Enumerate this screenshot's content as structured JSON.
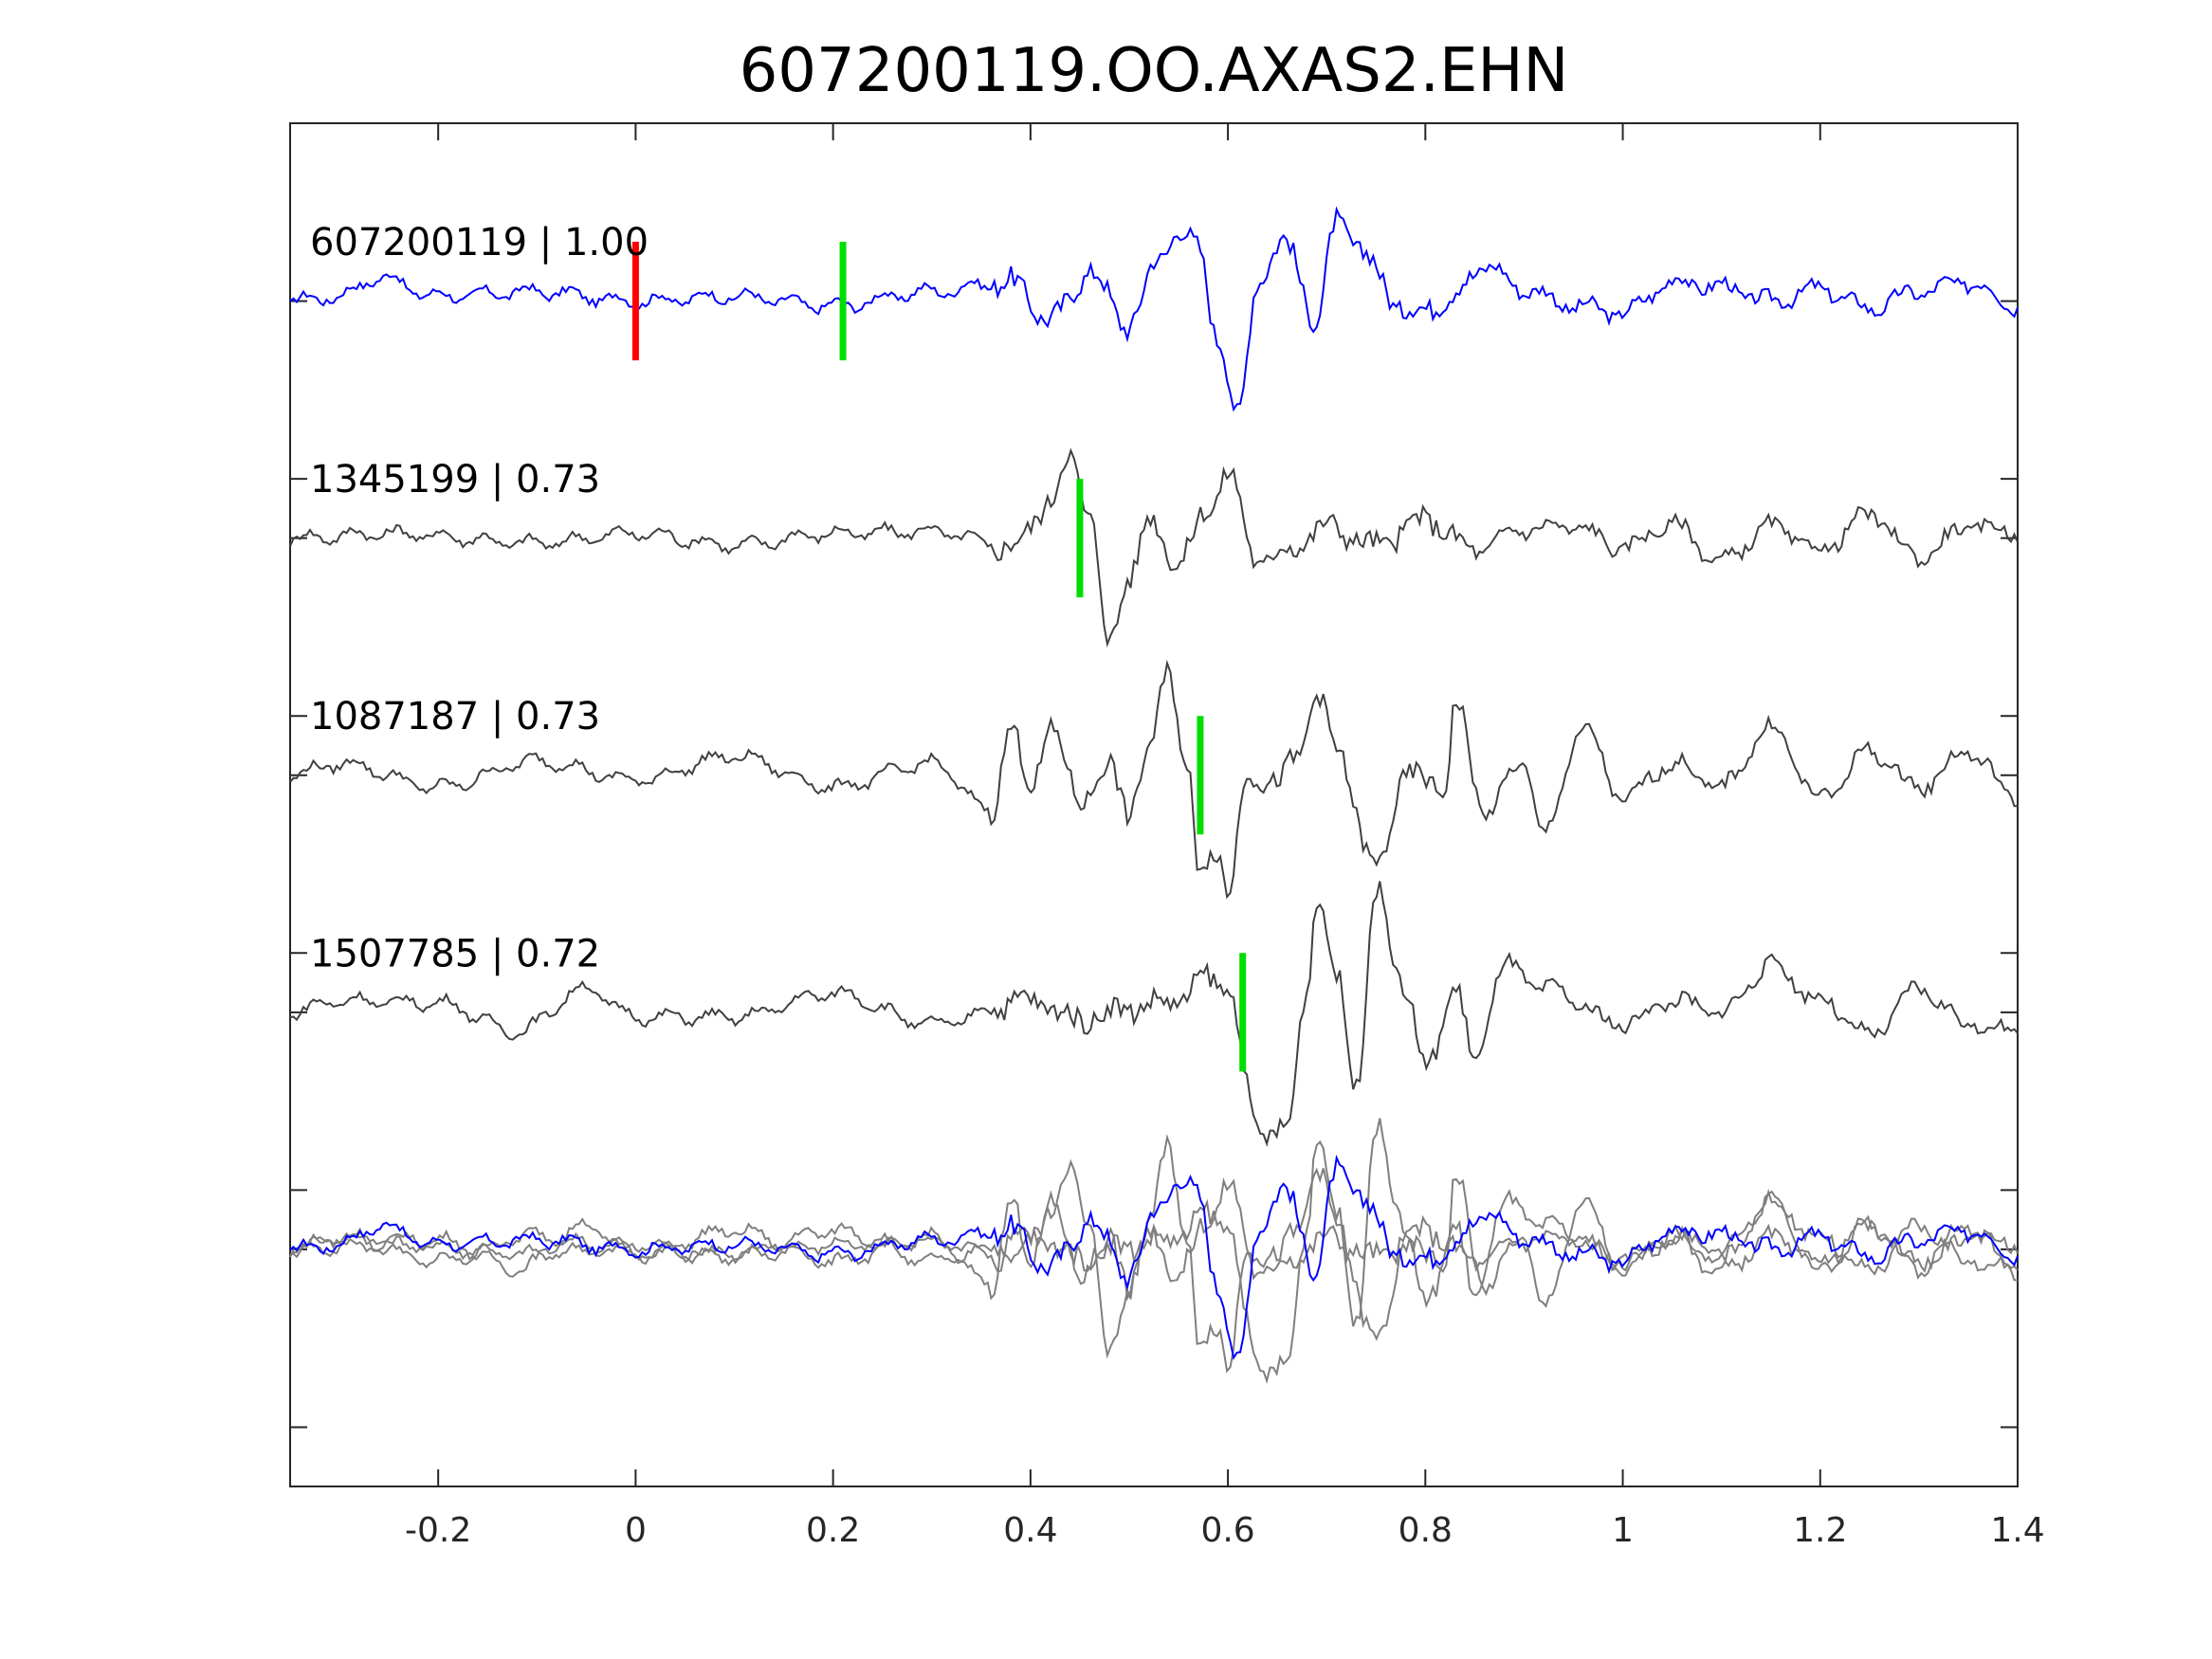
{
  "chart_data": {
    "type": "line",
    "title": "607200119.OO.AXAS2.EHN",
    "xlabel": "",
    "ylabel": "",
    "xlim": [
      -0.35,
      1.4
    ],
    "xticks": [
      -0.2,
      0,
      0.2,
      0.4,
      0.6,
      0.8,
      1,
      1.2,
      1.4
    ],
    "xtick_labels": [
      "-0.2",
      "0",
      "0.2",
      "0.4",
      "0.6",
      "0.8",
      "1",
      "1.2",
      "1.4"
    ],
    "ylim": [
      0,
      5.75
    ],
    "yticks": [
      0.25,
      1,
      1.25,
      2,
      2.25,
      3,
      3.25,
      4,
      4.25,
      5
    ],
    "grid": false,
    "colors": {
      "template": "#0000ff",
      "match": "#404040",
      "overlay_match": "#7f7f7f",
      "pick_red": "#ff0000",
      "pick_green": "#00dd00"
    },
    "traces": [
      {
        "label": "607200119 | 1.00",
        "baseline": 5,
        "kind": "template",
        "picks": [
          {
            "time": 0.0,
            "color": "red"
          },
          {
            "time": 0.21,
            "color": "green"
          }
        ],
        "peaks": [
          [
            -0.35,
            0
          ],
          [
            -0.3,
            0.02
          ],
          [
            -0.26,
            0.1
          ],
          [
            -0.2,
            0.02
          ],
          [
            -0.1,
            0.04
          ],
          [
            0.0,
            0.0
          ],
          [
            0.1,
            0.02
          ],
          [
            0.2,
            -0.02
          ],
          [
            0.3,
            0.04
          ],
          [
            0.38,
            0.08
          ],
          [
            0.42,
            -0.08
          ],
          [
            0.46,
            0.12
          ],
          [
            0.5,
            -0.1
          ],
          [
            0.53,
            0.18
          ],
          [
            0.55,
            0.3
          ],
          [
            0.57,
            0.22
          ],
          [
            0.59,
            -0.15
          ],
          [
            0.61,
            -0.5
          ],
          [
            0.63,
            0.1
          ],
          [
            0.66,
            0.25
          ],
          [
            0.69,
            -0.1
          ],
          [
            0.71,
            0.35
          ],
          [
            0.74,
            0.18
          ],
          [
            0.78,
            -0.05
          ],
          [
            0.82,
            0.0
          ],
          [
            0.86,
            0.15
          ],
          [
            0.9,
            0.05
          ],
          [
            0.95,
            -0.02
          ],
          [
            1.0,
            -0.05
          ],
          [
            1.05,
            0.08
          ],
          [
            1.1,
            0.06
          ],
          [
            1.15,
            0.0
          ],
          [
            1.2,
            0.05
          ],
          [
            1.25,
            -0.03
          ],
          [
            1.3,
            0.04
          ],
          [
            1.35,
            0.08
          ],
          [
            1.4,
            -0.02
          ]
        ]
      },
      {
        "label": "1345199 | 0.73",
        "baseline": 4,
        "kind": "match",
        "picks": [
          {
            "time": 0.45,
            "color": "green"
          }
        ],
        "peaks": [
          [
            -0.35,
            0
          ],
          [
            -0.25,
            0.02
          ],
          [
            -0.1,
            -0.02
          ],
          [
            0.0,
            0.02
          ],
          [
            0.1,
            -0.03
          ],
          [
            0.2,
            0.02
          ],
          [
            0.3,
            0.03
          ],
          [
            0.38,
            -0.04
          ],
          [
            0.42,
            0.15
          ],
          [
            0.44,
            0.35
          ],
          [
            0.46,
            0.1
          ],
          [
            0.48,
            -0.45
          ],
          [
            0.5,
            -0.15
          ],
          [
            0.52,
            0.07
          ],
          [
            0.55,
            -0.1
          ],
          [
            0.58,
            0.12
          ],
          [
            0.6,
            0.28
          ],
          [
            0.63,
            -0.1
          ],
          [
            0.66,
            -0.05
          ],
          [
            0.7,
            0.05
          ],
          [
            0.75,
            -0.03
          ],
          [
            0.8,
            0.08
          ],
          [
            0.85,
            -0.05
          ],
          [
            0.9,
            0.04
          ],
          [
            0.95,
            0.05
          ],
          [
            1.0,
            -0.04
          ],
          [
            1.05,
            0.06
          ],
          [
            1.1,
            -0.1
          ],
          [
            1.15,
            0.05
          ],
          [
            1.2,
            -0.05
          ],
          [
            1.25,
            0.1
          ],
          [
            1.3,
            -0.08
          ],
          [
            1.35,
            0.05
          ],
          [
            1.4,
            0.03
          ]
        ]
      },
      {
        "label": "1087187 | 0.73",
        "baseline": 3,
        "kind": "match",
        "picks": [
          {
            "time": 0.572,
            "color": "green"
          }
        ],
        "peaks": [
          [
            -0.35,
            0
          ],
          [
            -0.3,
            0.05
          ],
          [
            -0.2,
            -0.05
          ],
          [
            -0.1,
            0.06
          ],
          [
            0.0,
            -0.02
          ],
          [
            0.1,
            0.08
          ],
          [
            0.2,
            -0.05
          ],
          [
            0.3,
            0.05
          ],
          [
            0.36,
            -0.15
          ],
          [
            0.38,
            0.2
          ],
          [
            0.4,
            -0.05
          ],
          [
            0.42,
            0.2
          ],
          [
            0.45,
            -0.1
          ],
          [
            0.48,
            0.03
          ],
          [
            0.5,
            -0.15
          ],
          [
            0.52,
            0.1
          ],
          [
            0.54,
            0.45
          ],
          [
            0.56,
            0.0
          ],
          [
            0.57,
            -0.4
          ],
          [
            0.59,
            -0.3
          ],
          [
            0.6,
            -0.5
          ],
          [
            0.62,
            0.0
          ],
          [
            0.65,
            -0.03
          ],
          [
            0.67,
            0.07
          ],
          [
            0.69,
            0.35
          ],
          [
            0.71,
            0.1
          ],
          [
            0.75,
            -0.4
          ],
          [
            0.78,
            0.0
          ],
          [
            0.82,
            -0.05
          ],
          [
            0.83,
            0.3
          ],
          [
            0.86,
            -0.15
          ],
          [
            0.9,
            0.05
          ],
          [
            0.92,
            -0.25
          ],
          [
            0.96,
            0.2
          ],
          [
            1.0,
            -0.1
          ],
          [
            1.05,
            0.05
          ],
          [
            1.1,
            -0.05
          ],
          [
            1.15,
            0.2
          ],
          [
            1.2,
            -0.1
          ],
          [
            1.25,
            0.1
          ],
          [
            1.3,
            -0.05
          ],
          [
            1.35,
            0.1
          ],
          [
            1.4,
            -0.1
          ]
        ]
      },
      {
        "label": "1507785 | 0.72",
        "baseline": 2,
        "kind": "match",
        "picks": [
          {
            "time": 0.615,
            "color": "green"
          }
        ],
        "peaks": [
          [
            -0.35,
            0
          ],
          [
            -0.3,
            0.05
          ],
          [
            -0.2,
            0.04
          ],
          [
            -0.12,
            -0.08
          ],
          [
            -0.05,
            0.1
          ],
          [
            0.0,
            -0.02
          ],
          [
            0.1,
            -0.02
          ],
          [
            0.2,
            0.08
          ],
          [
            0.3,
            -0.05
          ],
          [
            0.4,
            0.05
          ],
          [
            0.45,
            -0.03
          ],
          [
            0.5,
            0.02
          ],
          [
            0.55,
            0.05
          ],
          [
            0.58,
            0.15
          ],
          [
            0.6,
            0.1
          ],
          [
            0.63,
            -0.5
          ],
          [
            0.66,
            -0.5
          ],
          [
            0.68,
            0.1
          ],
          [
            0.69,
            0.5
          ],
          [
            0.71,
            0.15
          ],
          [
            0.73,
            -0.3
          ],
          [
            0.75,
            0.5
          ],
          [
            0.78,
            0.1
          ],
          [
            0.8,
            -0.25
          ],
          [
            0.83,
            0.1
          ],
          [
            0.85,
            -0.2
          ],
          [
            0.88,
            0.2
          ],
          [
            0.92,
            0.1
          ],
          [
            1.0,
            -0.05
          ],
          [
            1.05,
            0.05
          ],
          [
            1.1,
            0.0
          ],
          [
            1.15,
            0.2
          ],
          [
            1.2,
            0.05
          ],
          [
            1.25,
            -0.1
          ],
          [
            1.3,
            0.1
          ],
          [
            1.35,
            -0.05
          ],
          [
            1.4,
            -0.08
          ]
        ]
      }
    ],
    "overlay_baseline": 1
  }
}
